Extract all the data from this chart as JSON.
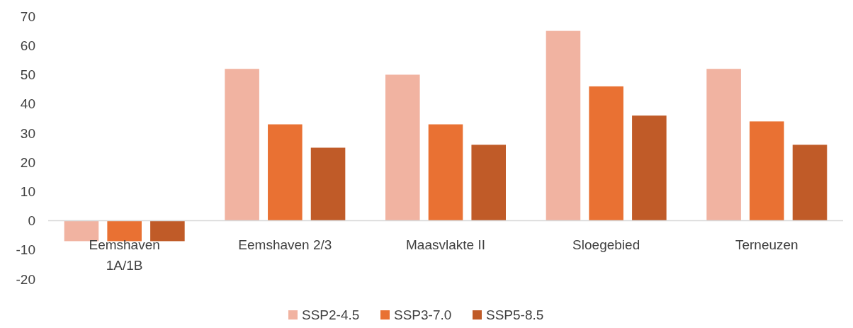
{
  "chart_data": {
    "type": "bar",
    "categories": [
      "Eemshaven 1A/1B",
      "Eemshaven 2/3",
      "Maasvlakte II",
      "Sloegebied",
      "Terneuzen"
    ],
    "series": [
      {
        "name": "SSP2-4.5",
        "color": "#f1b3a1",
        "values": [
          -7,
          52,
          50,
          65,
          52
        ]
      },
      {
        "name": "SSP3-7.0",
        "color": "#e97133",
        "values": [
          -7,
          33,
          33,
          46,
          34
        ]
      },
      {
        "name": "SSP5-8.5",
        "color": "#c05b28",
        "values": [
          -7,
          25,
          26,
          36,
          26
        ]
      }
    ],
    "ylim": [
      -20,
      70
    ],
    "yticks": [
      -20,
      -10,
      0,
      10,
      20,
      30,
      40,
      50,
      60,
      70
    ],
    "grid": false,
    "legend": "bottom"
  }
}
